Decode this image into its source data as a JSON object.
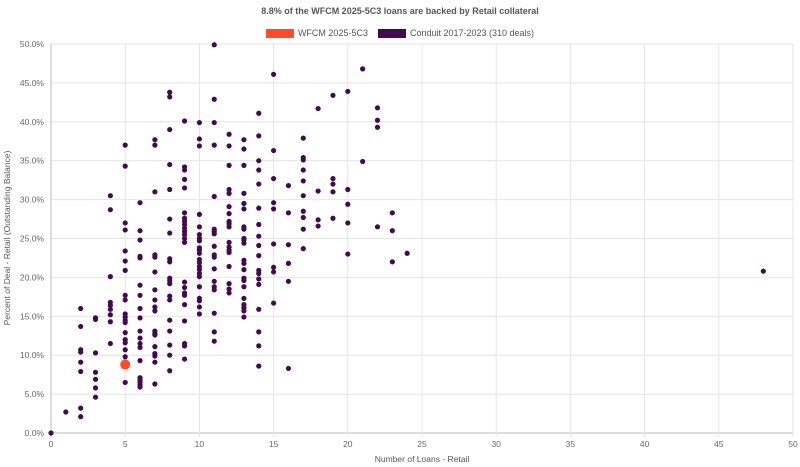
{
  "chart_data": {
    "type": "scatter",
    "title": "8.8% of the WFCM 2025-5C3 loans are backed by Retail collateral",
    "xlabel": "Number of Loans - Retail",
    "ylabel": "Percent of Deal - Retail (Outstanding Balance)",
    "xlim": [
      0,
      50
    ],
    "ylim": [
      0,
      50
    ],
    "xticks": [
      "0",
      "5",
      "10",
      "15",
      "20",
      "25",
      "30",
      "35",
      "40",
      "45",
      "50"
    ],
    "yticks": [
      "0.0%",
      "5.0%",
      "10.0%",
      "15.0%",
      "20.0%",
      "25.0%",
      "30.0%",
      "35.0%",
      "40.0%",
      "45.0%",
      "50.0%"
    ],
    "grid": true,
    "legend_position": "top-center",
    "series": [
      {
        "name": "WFCM 2025-5C3",
        "color": "#fc4a2a",
        "columns": [
          {
            "x": 5,
            "y": [
              8.8
            ]
          }
        ]
      },
      {
        "name": "Conduit 2017-2023 (310 deals)",
        "color": "#440a4f",
        "columns": [
          {
            "x": 0,
            "y": [
              0
            ]
          },
          {
            "x": 1,
            "y": [
              2.7
            ]
          },
          {
            "x": 2,
            "y": [
              16.0,
              13.7,
              10.7,
              10.4,
              9.1,
              7.9,
              3.2,
              2.1
            ]
          },
          {
            "x": 3,
            "y": [
              14.8,
              14.6,
              10.3,
              7.8,
              6.9,
              5.8,
              4.6
            ]
          },
          {
            "x": 4,
            "y": [
              30.5,
              28.7,
              20.1,
              16.8,
              16.4,
              15.9,
              15.2,
              14.3,
              11.5
            ]
          },
          {
            "x": 5,
            "y": [
              37.0,
              34.3,
              27.0,
              26.1,
              23.4,
              22.1,
              20.9,
              17.7,
              17.1,
              15.3,
              14.9,
              14.5,
              14.2,
              12.9,
              12.0,
              11.6,
              10.7,
              9.8,
              6.5
            ]
          },
          {
            "x": 6,
            "y": [
              29.6,
              26.0,
              24.8,
              22.7,
              22.5,
              19.0,
              17.7,
              16.0,
              14.8,
              13.1,
              12.2,
              11.5,
              11.0,
              9.3,
              7.1,
              6.8,
              6.5,
              6.2,
              5.9
            ]
          },
          {
            "x": 7,
            "y": [
              37.7,
              37.0,
              31.0,
              22.9,
              22.6,
              20.7,
              18.4,
              17.1,
              16.2,
              15.7,
              13.1,
              12.8,
              12.6,
              11.1,
              10.2,
              9.9,
              9.1,
              6.3
            ]
          },
          {
            "x": 8,
            "y": [
              43.8,
              43.2,
              39.0,
              34.5,
              31.3,
              27.5,
              25.7,
              22.4,
              22.0,
              19.9,
              19.6,
              19.2,
              17.6,
              17.1,
              14.5,
              13.1,
              11.3,
              10.0,
              8.0
            ]
          },
          {
            "x": 9,
            "y": [
              40.1,
              34.2,
              33.8,
              32.6,
              31.5,
              28.3,
              27.6,
              27.2,
              26.8,
              26.3,
              25.9,
              25.5,
              25.0,
              24.5,
              19.4,
              18.7,
              18.0,
              17.7,
              16.5,
              14.4,
              11.5,
              11.2,
              9.5
            ]
          },
          {
            "x": 10,
            "y": [
              39.9,
              37.8,
              36.9,
              28.1,
              26.5,
              25.5,
              25.0,
              24.7,
              23.8,
              23.5,
              23.1,
              22.3,
              21.9,
              21.4,
              21.0,
              20.5,
              20.1,
              18.8,
              17.3,
              17.0,
              16.2,
              15.3
            ]
          },
          {
            "x": 11,
            "y": [
              49.9,
              42.9,
              39.9,
              37.0,
              30.4,
              26.2,
              25.9,
              25.6,
              24.0,
              22.9,
              22.6,
              21.1,
              19.5,
              18.8,
              18.4,
              15.4,
              13.0,
              11.8
            ]
          },
          {
            "x": 12,
            "y": [
              38.4,
              36.9,
              34.4,
              31.3,
              30.8,
              29.1,
              28.2,
              27.2,
              26.9,
              26.5,
              24.5,
              23.9,
              23.5,
              23.2,
              21.4,
              19.2,
              18.5,
              18.0
            ]
          },
          {
            "x": 13,
            "y": [
              37.7,
              36.5,
              34.4,
              30.8,
              29.5,
              28.8,
              26.5,
              26.2,
              25.0,
              24.8,
              24.4,
              22.2,
              21.8,
              21.0,
              19.9,
              19.6,
              18.8,
              17.3,
              16.5,
              16.1,
              15.7,
              14.9
            ]
          },
          {
            "x": 14,
            "y": [
              41.1,
              38.2,
              35.0,
              33.8,
              32.0,
              28.9,
              26.8,
              25.3,
              24.1,
              22.8,
              20.9,
              20.5,
              19.8,
              19.1,
              15.9,
              13.0,
              11.2,
              8.6
            ]
          },
          {
            "x": 15,
            "y": [
              46.1,
              36.3,
              32.7,
              29.6,
              28.8,
              24.3,
              21.3,
              20.7,
              16.7
            ]
          },
          {
            "x": 16,
            "y": [
              31.8,
              28.3,
              24.2,
              21.8,
              19.5,
              8.3
            ]
          },
          {
            "x": 17,
            "y": [
              37.9,
              35.4,
              35.1,
              33.8,
              32.4,
              30.5,
              28.5,
              27.7,
              26.2,
              23.7
            ]
          },
          {
            "x": 18,
            "y": [
              41.7,
              31.1,
              27.4,
              26.6
            ]
          },
          {
            "x": 19,
            "y": [
              43.4,
              32.7,
              32.0,
              31.0,
              27.6
            ]
          },
          {
            "x": 20,
            "y": [
              43.9,
              31.3,
              29.4,
              27.0,
              23.0
            ]
          },
          {
            "x": 21,
            "y": [
              46.8,
              34.9
            ]
          },
          {
            "x": 22,
            "y": [
              41.8,
              40.2,
              39.3,
              26.5
            ]
          },
          {
            "x": 23,
            "y": [
              28.3,
              26.0,
              22.0
            ]
          },
          {
            "x": 24,
            "y": [
              23.1
            ]
          },
          {
            "x": 48,
            "y": [
              20.8
            ]
          }
        ]
      }
    ]
  }
}
